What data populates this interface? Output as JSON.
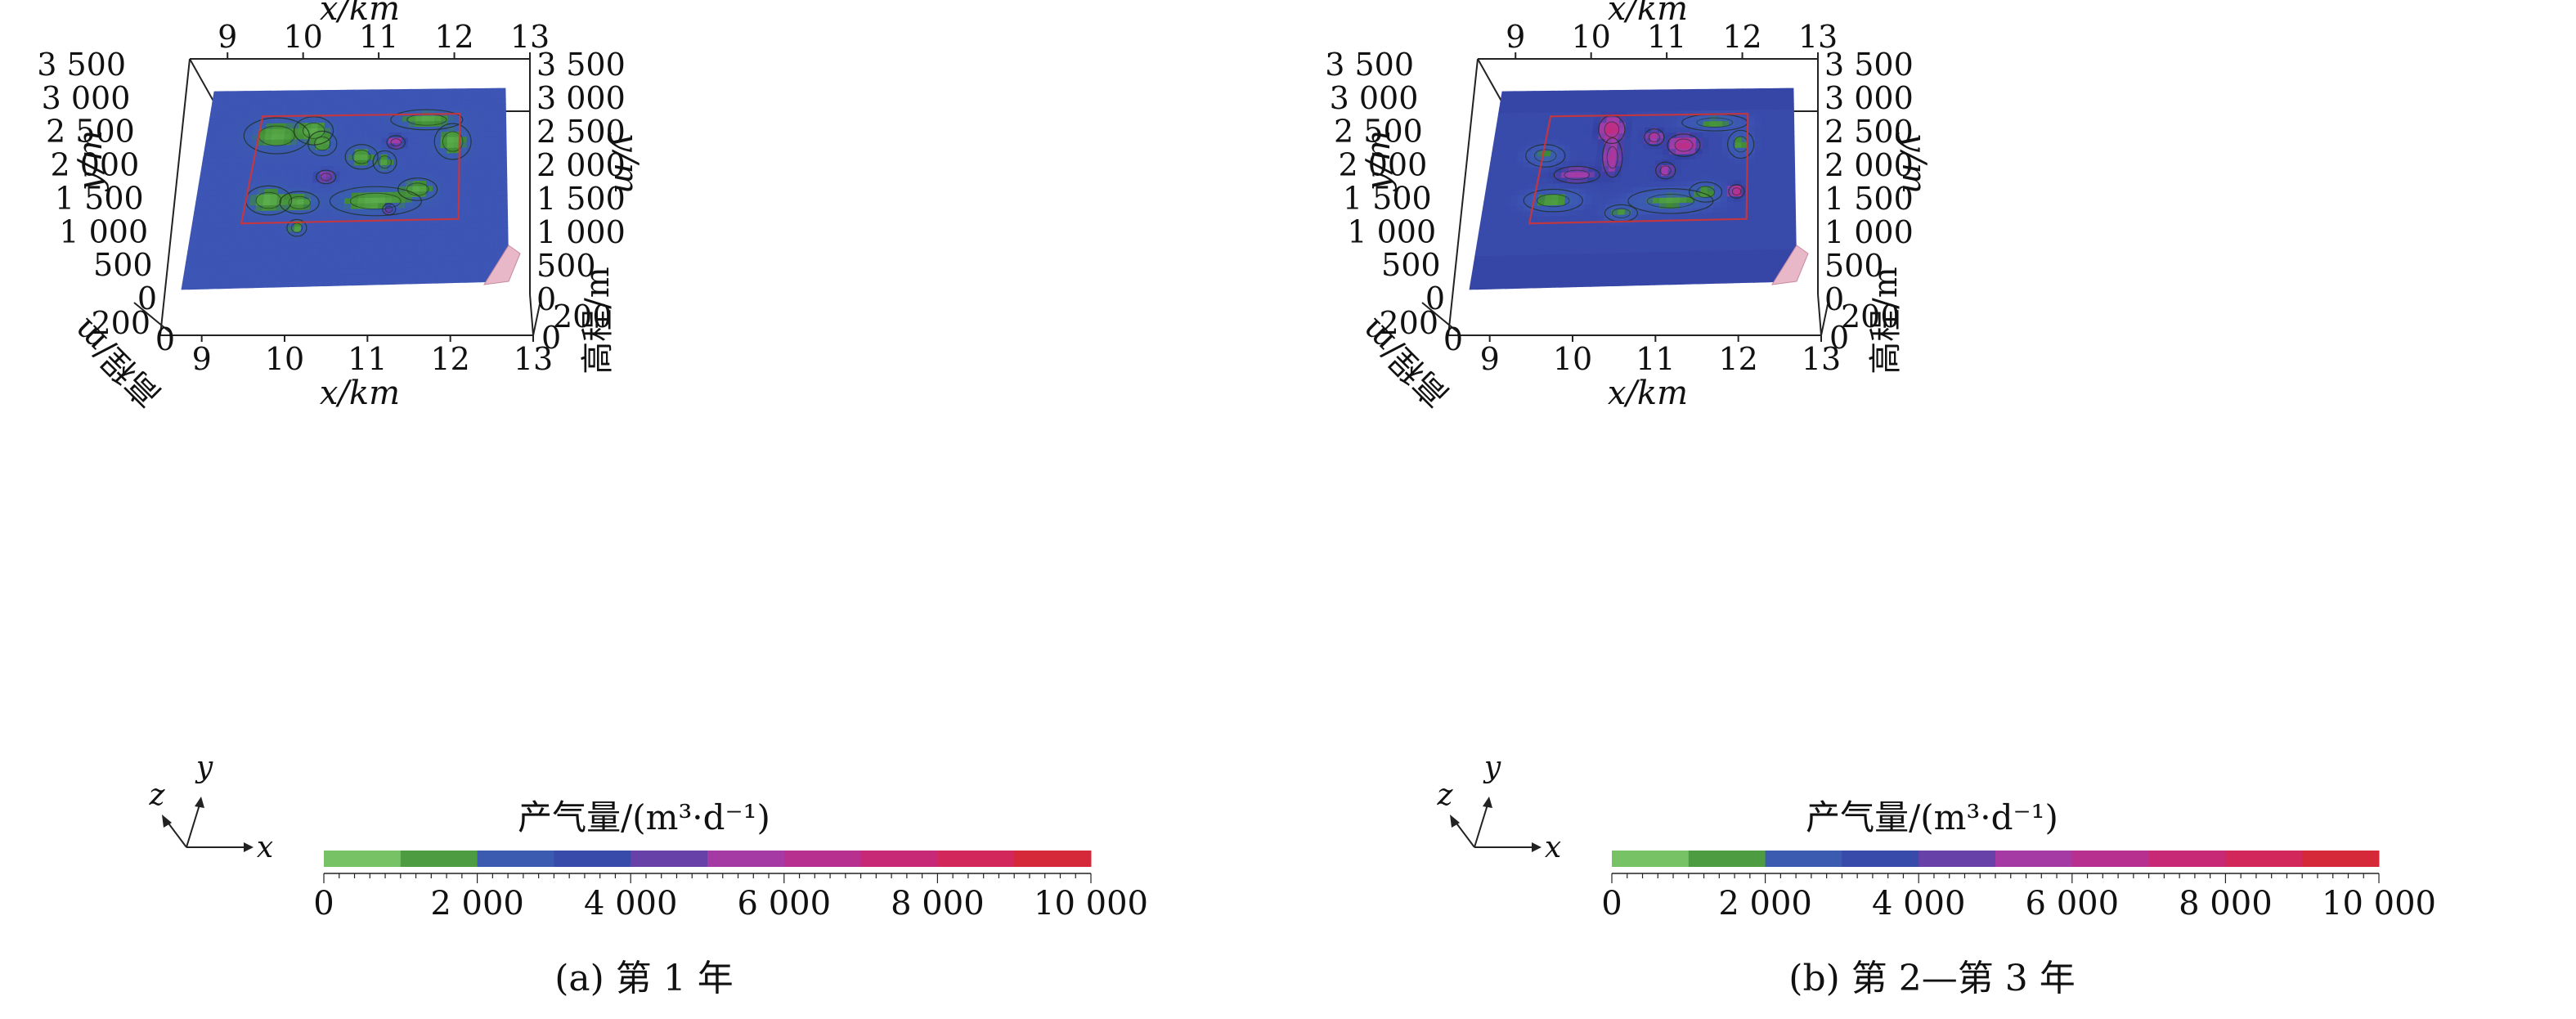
{
  "chart_data": [
    {
      "type": "heatmap",
      "title": "",
      "caption": "(a) 第 1 年",
      "xlabel": "x/km",
      "ylabel": "y/m",
      "zlabel": "高程/m",
      "x_ticks": [
        "9",
        "10",
        "11",
        "12",
        "13"
      ],
      "y_ticks": [
        "0",
        "500",
        "1 000",
        "1 500",
        "2 000",
        "2 500",
        "3 000",
        "3 500"
      ],
      "z_ticks": [
        "0",
        "200"
      ],
      "xlim": [
        8.5,
        13
      ],
      "ylim": [
        0,
        3500
      ],
      "zlim": [
        0,
        200
      ],
      "colorbar": {
        "label": "产气量/(m³·d⁻¹)",
        "range": [
          0,
          10000
        ],
        "ticks": [
          "0",
          "2 000",
          "4 000",
          "6 000",
          "8 000",
          "10 000"
        ]
      },
      "background_value": 3000,
      "blobs": [
        {
          "x": 9.55,
          "y": 2700,
          "rx": 0.5,
          "ry": 320,
          "value": 1200
        },
        {
          "x": 10.1,
          "y": 2780,
          "rx": 0.3,
          "ry": 250,
          "value": 1100
        },
        {
          "x": 10.25,
          "y": 2550,
          "rx": 0.22,
          "ry": 220,
          "value": 1300
        },
        {
          "x": 10.85,
          "y": 2300,
          "rx": 0.25,
          "ry": 220,
          "value": 1200
        },
        {
          "x": 11.2,
          "y": 2200,
          "rx": 0.18,
          "ry": 200,
          "value": 1400
        },
        {
          "x": 11.8,
          "y": 2950,
          "rx": 0.55,
          "ry": 180,
          "value": 1200
        },
        {
          "x": 12.2,
          "y": 2550,
          "rx": 0.28,
          "ry": 320,
          "value": 1100
        },
        {
          "x": 9.55,
          "y": 1550,
          "rx": 0.35,
          "ry": 260,
          "value": 1000
        },
        {
          "x": 10.0,
          "y": 1500,
          "rx": 0.3,
          "ry": 200,
          "value": 1200
        },
        {
          "x": 11.1,
          "y": 1500,
          "rx": 0.7,
          "ry": 260,
          "value": 1100
        },
        {
          "x": 11.7,
          "y": 1700,
          "rx": 0.3,
          "ry": 200,
          "value": 1200
        },
        {
          "x": 10.0,
          "y": 1050,
          "rx": 0.15,
          "ry": 150,
          "value": 1300
        },
        {
          "x": 10.35,
          "y": 1950,
          "rx": 0.15,
          "ry": 120,
          "value": 5500
        },
        {
          "x": 11.35,
          "y": 2550,
          "rx": 0.14,
          "ry": 120,
          "value": 6000
        },
        {
          "x": 11.3,
          "y": 1350,
          "rx": 0.1,
          "ry": 100,
          "value": 5000
        }
      ]
    },
    {
      "type": "heatmap",
      "title": "",
      "caption": "(b) 第 2—第 3 年",
      "xlabel": "x/km",
      "ylabel": "y/m",
      "zlabel": "高程/m",
      "x_ticks": [
        "9",
        "10",
        "11",
        "12",
        "13"
      ],
      "y_ticks": [
        "0",
        "500",
        "1 000",
        "1 500",
        "2 000",
        "2 500",
        "3 000",
        "3 500"
      ],
      "z_ticks": [
        "0",
        "200"
      ],
      "xlim": [
        8.5,
        13
      ],
      "ylim": [
        0,
        3500
      ],
      "zlim": [
        0,
        200
      ],
      "colorbar": {
        "label": "产气量/(m³·d⁻¹)",
        "range": [
          0,
          10000
        ],
        "ticks": [
          "0",
          "2 000",
          "4 000",
          "6 000",
          "8 000",
          "10 000"
        ]
      },
      "background_value": 3500,
      "blobs": [
        {
          "x": 10.25,
          "y": 2800,
          "rx": 0.2,
          "ry": 250,
          "value": 7500
        },
        {
          "x": 10.3,
          "y": 2300,
          "rx": 0.15,
          "ry": 350,
          "value": 6000
        },
        {
          "x": 9.8,
          "y": 2000,
          "rx": 0.35,
          "ry": 150,
          "value": 5500
        },
        {
          "x": 11.35,
          "y": 2500,
          "rx": 0.25,
          "ry": 200,
          "value": 7000
        },
        {
          "x": 10.9,
          "y": 2650,
          "rx": 0.15,
          "ry": 150,
          "value": 6000
        },
        {
          "x": 12.15,
          "y": 1650,
          "rx": 0.12,
          "ry": 120,
          "value": 7500
        },
        {
          "x": 11.1,
          "y": 2050,
          "rx": 0.15,
          "ry": 150,
          "value": 5500
        },
        {
          "x": 9.3,
          "y": 2350,
          "rx": 0.3,
          "ry": 200,
          "value": 1800
        },
        {
          "x": 11.8,
          "y": 2900,
          "rx": 0.5,
          "ry": 150,
          "value": 1500
        },
        {
          "x": 12.2,
          "y": 2500,
          "rx": 0.2,
          "ry": 250,
          "value": 1500
        },
        {
          "x": 9.5,
          "y": 1550,
          "rx": 0.45,
          "ry": 200,
          "value": 1300
        },
        {
          "x": 11.2,
          "y": 1500,
          "rx": 0.65,
          "ry": 220,
          "value": 1400
        },
        {
          "x": 10.5,
          "y": 1300,
          "rx": 0.25,
          "ry": 150,
          "value": 1600
        },
        {
          "x": 11.7,
          "y": 1650,
          "rx": 0.25,
          "ry": 180,
          "value": 1500
        }
      ]
    }
  ],
  "axes_triad": {
    "x": "x",
    "y": "y",
    "z": "z"
  }
}
